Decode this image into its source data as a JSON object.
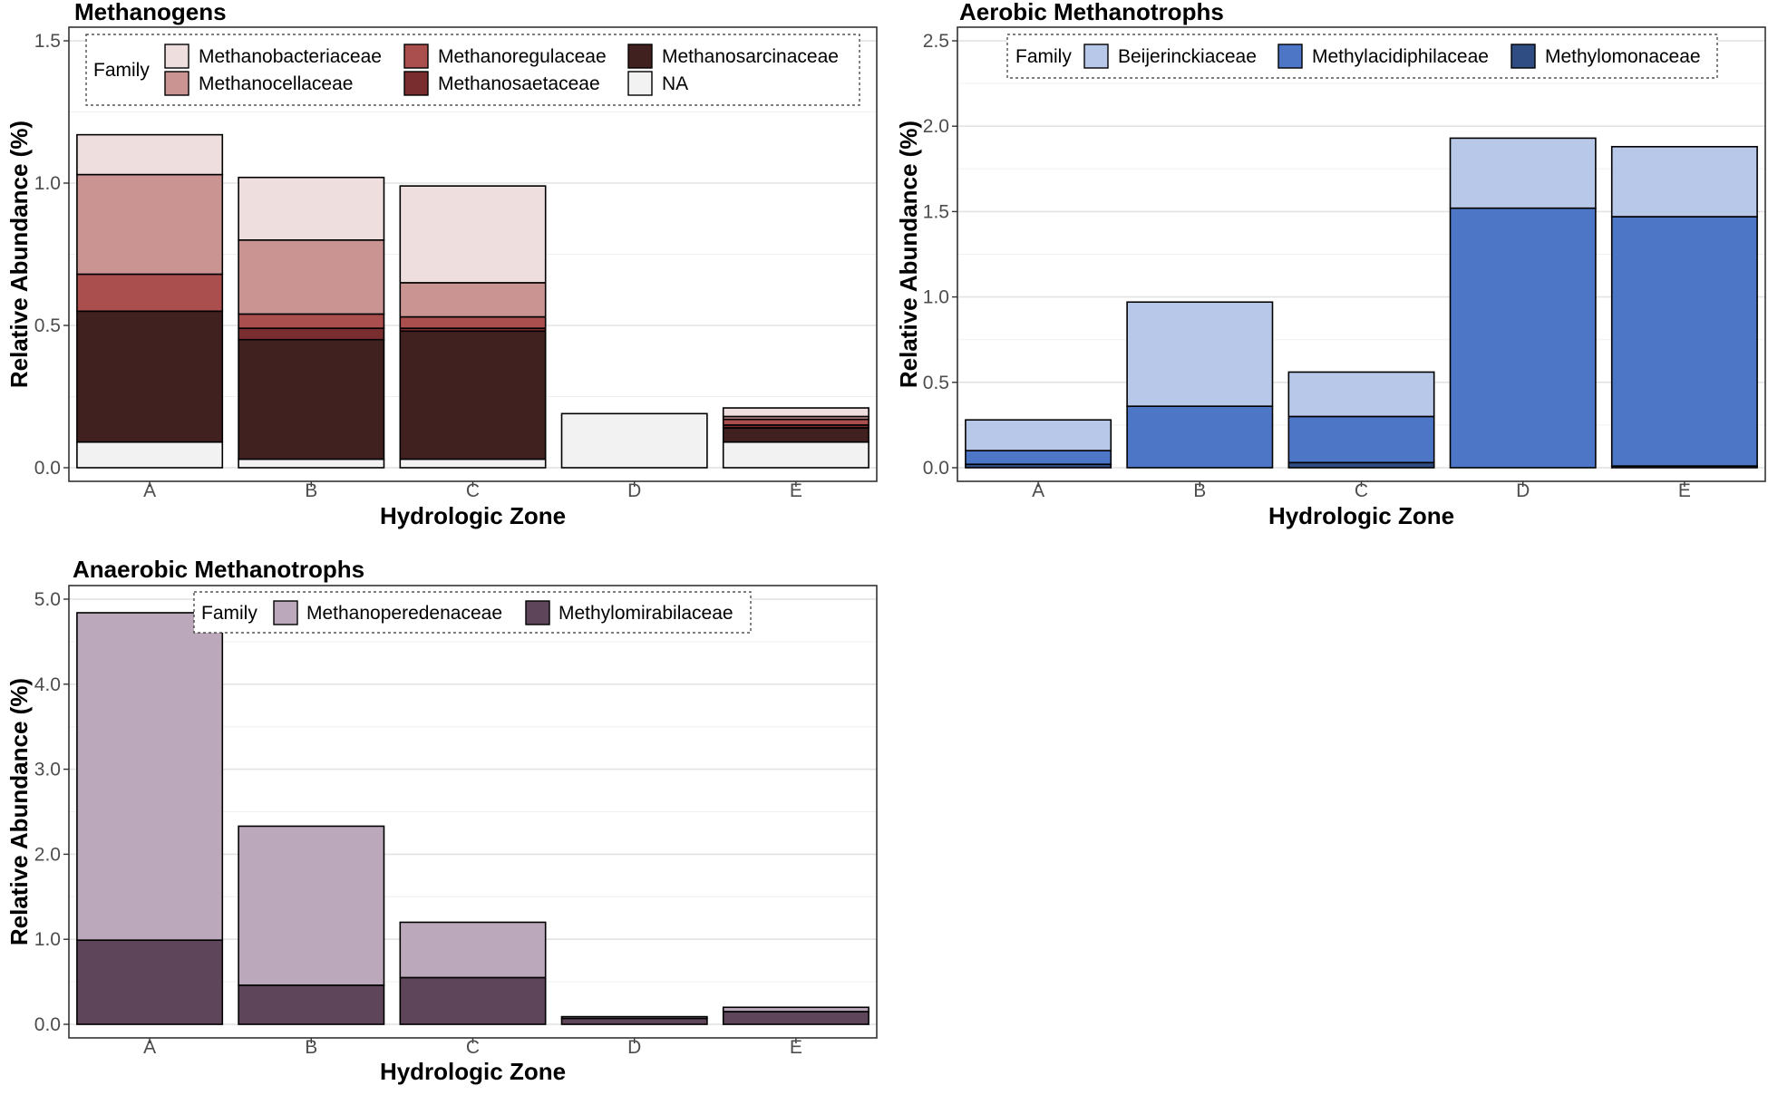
{
  "chart_data": [
    {
      "type": "bar",
      "stacked": true,
      "title": "Methanogens",
      "xlabel": "Hydrologic Zone",
      "ylabel": "Relative Abundance (%)",
      "ylim": [
        0,
        1.5
      ],
      "yticks": [
        0.0,
        0.5,
        1.0,
        1.5
      ],
      "ytick_labels": [
        "0.0",
        "0.5",
        "1.0",
        "1.5"
      ],
      "grid": true,
      "legend_position": "top",
      "legend_title": "Family",
      "categories": [
        "A",
        "B",
        "C",
        "D",
        "E"
      ],
      "series": [
        {
          "name": "Methanobacteriaceae",
          "color": "#eedede",
          "values": [
            0.14,
            0.22,
            0.34,
            0.0,
            0.03
          ]
        },
        {
          "name": "Methanocellaceae",
          "color": "#c99491",
          "values": [
            0.35,
            0.26,
            0.12,
            0.0,
            0.01
          ]
        },
        {
          "name": "Methanoregulaceae",
          "color": "#aa4f4d",
          "values": [
            0.13,
            0.05,
            0.04,
            0.0,
            0.02
          ]
        },
        {
          "name": "Methanosaetaceae",
          "color": "#7a2d2f",
          "values": [
            0.0,
            0.04,
            0.01,
            0.0,
            0.01
          ]
        },
        {
          "name": "Methanosarcinaceae",
          "color": "#412020",
          "values": [
            0.46,
            0.42,
            0.45,
            0.0,
            0.05
          ]
        },
        {
          "name": "NA",
          "color": "#f2f2f2",
          "values": [
            0.09,
            0.03,
            0.03,
            0.19,
            0.09
          ]
        }
      ]
    },
    {
      "type": "bar",
      "stacked": true,
      "title": "Aerobic Methanotrophs",
      "xlabel": "Hydrologic Zone",
      "ylabel": "Relative Abundance (%)",
      "ylim": [
        0,
        2.5
      ],
      "yticks": [
        0.0,
        0.5,
        1.0,
        1.5,
        2.0,
        2.5
      ],
      "ytick_labels": [
        "0.0",
        "0.5",
        "1.0",
        "1.5",
        "2.0",
        "2.5"
      ],
      "grid": true,
      "legend_position": "top",
      "legend_title": "Family",
      "categories": [
        "A",
        "B",
        "C",
        "D",
        "E"
      ],
      "series": [
        {
          "name": "Beijerinckiaceae",
          "color": "#b7c8e8",
          "values": [
            0.18,
            0.61,
            0.26,
            0.41,
            0.41
          ]
        },
        {
          "name": "Methylacidiphilaceae",
          "color": "#4e76c7",
          "values": [
            0.08,
            0.36,
            0.27,
            1.52,
            1.46
          ]
        },
        {
          "name": "Methylomonaceae",
          "color": "#2f4d82",
          "values": [
            0.02,
            0.0,
            0.03,
            0.0,
            0.01
          ]
        }
      ]
    },
    {
      "type": "bar",
      "stacked": true,
      "title": "Anaerobic Methanotrophs",
      "xlabel": "Hydrologic Zone",
      "ylabel": "Relative Abundance (%)",
      "ylim": [
        0,
        5.0
      ],
      "yticks": [
        0.0,
        1.0,
        2.0,
        3.0,
        4.0,
        5.0
      ],
      "ytick_labels": [
        "0.0",
        "1.0",
        "2.0",
        "3.0",
        "4.0",
        "5.0"
      ],
      "grid": true,
      "legend_position": "top",
      "legend_title": "Family",
      "categories": [
        "A",
        "B",
        "C",
        "D",
        "E"
      ],
      "series": [
        {
          "name": "Methanoperedenaceae",
          "color": "#bba9bb",
          "values": [
            3.85,
            1.87,
            0.65,
            0.02,
            0.05
          ]
        },
        {
          "name": "Methylomirabilaceae",
          "color": "#5f4559",
          "values": [
            0.99,
            0.46,
            0.55,
            0.07,
            0.15
          ]
        }
      ]
    }
  ]
}
